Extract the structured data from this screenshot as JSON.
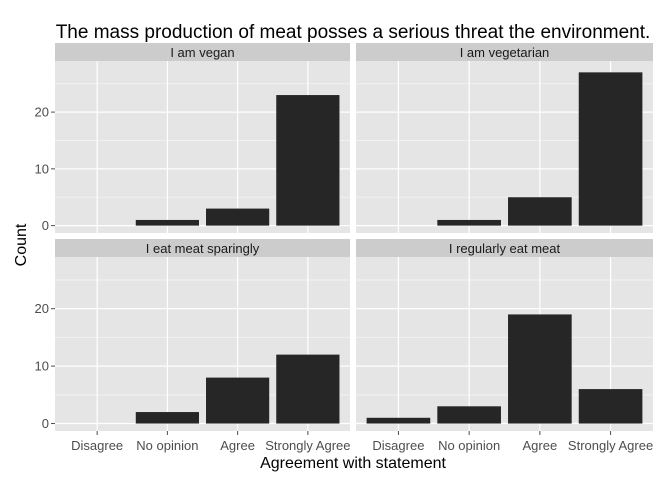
{
  "chart_data": {
    "type": "bar",
    "title": "The mass production of meat posses a serious threat the environment.",
    "xlabel": "Agreement with statement",
    "ylabel": "Count",
    "categories": [
      "Disagree",
      "No opinion",
      "Agree",
      "Strongly Agree"
    ],
    "ylim": [
      -1.3,
      29
    ],
    "yticks": [
      0,
      10,
      20
    ],
    "grid": true,
    "bar_color": "#262626",
    "panel_color": "#e5e5e5",
    "strip_color": "#cccccc",
    "panels": [
      {
        "label": "I am vegan",
        "values": [
          0,
          1,
          3,
          23
        ]
      },
      {
        "label": "I am vegetarian",
        "values": [
          0,
          1,
          5,
          27
        ]
      },
      {
        "label": "I eat meat sparingly",
        "values": [
          0,
          2,
          8,
          12
        ]
      },
      {
        "label": "I regularly eat meat",
        "values": [
          1,
          3,
          19,
          6
        ]
      }
    ]
  }
}
